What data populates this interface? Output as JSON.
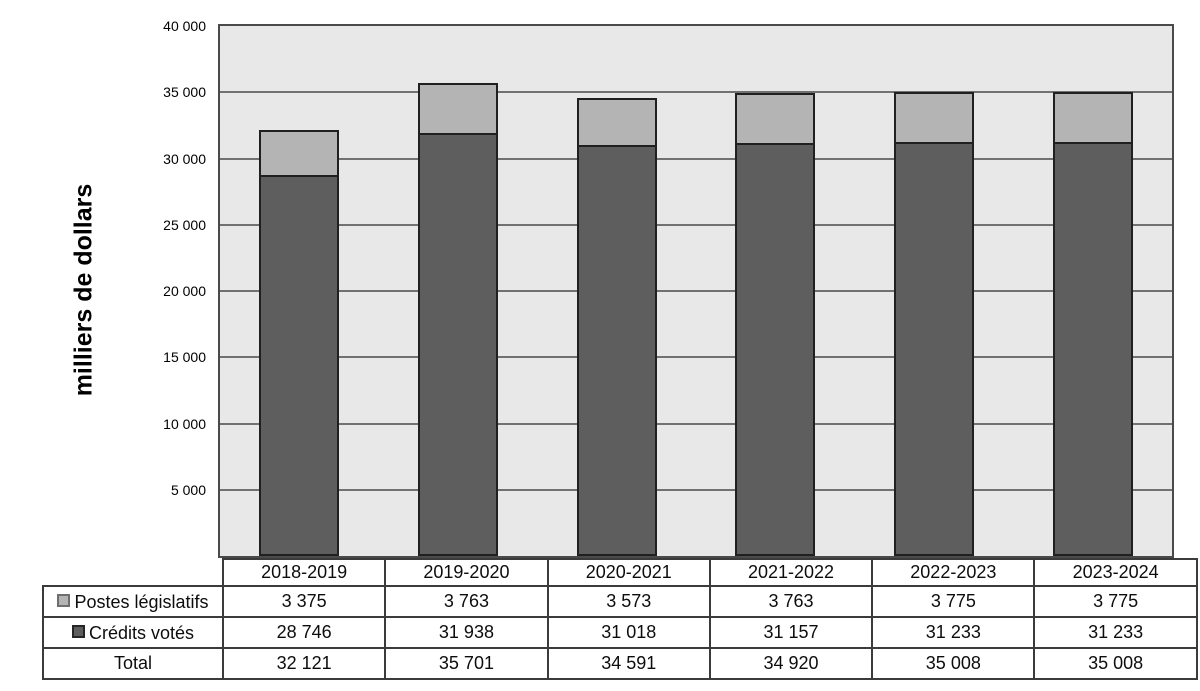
{
  "chart_data": {
    "type": "bar",
    "stacked": true,
    "title": "",
    "y_axis_title": "milliers de dollars",
    "categories": [
      "2018-2019",
      "2019-2020",
      "2020-2021",
      "2021-2022",
      "2022-2023",
      "2023-2024"
    ],
    "series": [
      {
        "name": "Postes législatifs",
        "slug": "postes-legislatifs",
        "color": "#b4b4b4",
        "stack_position": "top",
        "values": [
          3375,
          3763,
          3573,
          3763,
          3775,
          3775
        ],
        "labels": [
          "3 375",
          "3 763",
          "3 573",
          "3 763",
          "3 775",
          "3 775"
        ]
      },
      {
        "name": "Crédits votés",
        "slug": "credits-votes",
        "color": "#5e5e5e",
        "stack_position": "bottom",
        "values": [
          28746,
          31938,
          31018,
          31157,
          31233,
          31233
        ],
        "labels": [
          "28 746",
          "31 938",
          "31 018",
          "31 157",
          "31 233",
          "31 233"
        ]
      }
    ],
    "totals": {
      "label": "Total",
      "values": [
        32121,
        35701,
        34591,
        34920,
        35008,
        35008
      ],
      "labels": [
        "32 121",
        "35 701",
        "34 591",
        "34 920",
        "35 008",
        "35 008"
      ]
    },
    "ylim": [
      0,
      40000
    ],
    "ytick_interval": 5000,
    "yticks": [
      {
        "value": 40000,
        "label": "40 000"
      },
      {
        "value": 35000,
        "label": "35 000"
      },
      {
        "value": 30000,
        "label": "30 000"
      },
      {
        "value": 25000,
        "label": "25 000"
      },
      {
        "value": 20000,
        "label": "20 000"
      },
      {
        "value": 15000,
        "label": "15 000"
      },
      {
        "value": 10000,
        "label": "10 000"
      },
      {
        "value": 5000,
        "label": "5 000"
      }
    ],
    "grid": "horizontal",
    "legend_position": "table-row-headers",
    "colors": {
      "plot_background": "#e8e8e8",
      "grid_line": "#717171",
      "plot_border": "#4a4a4a",
      "bar_border": "#202020",
      "table_border": "#3b3b3b",
      "light_series": "#b4b4b4",
      "dark_series": "#5e5e5e"
    }
  }
}
